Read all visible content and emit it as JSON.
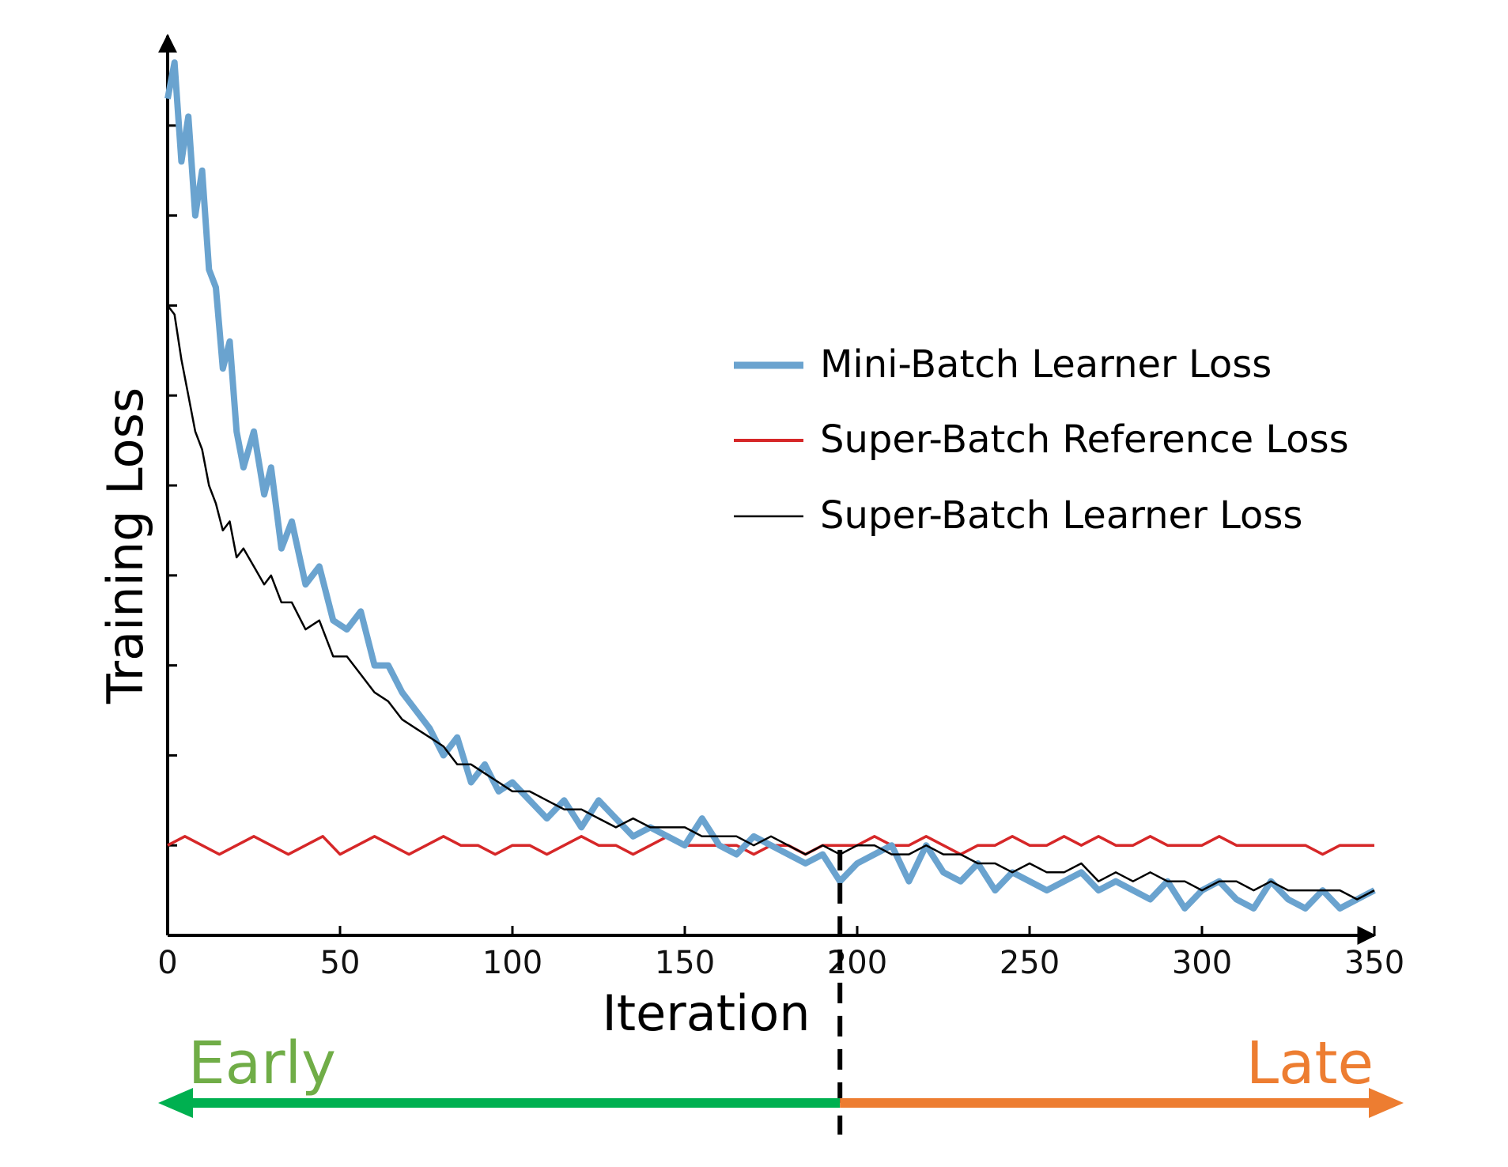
{
  "chart_data": {
    "type": "line",
    "xlabel": "Iteration",
    "ylabel": "Training Loss",
    "xlim": [
      0,
      350
    ],
    "ylim": [
      0,
      1.0
    ],
    "x_ticks": [
      0,
      50,
      100,
      150,
      200,
      250,
      300,
      350
    ],
    "x_tick_labels": [
      "0",
      "50",
      "100",
      "150",
      "200",
      "250",
      "300",
      "350"
    ],
    "y_ticks": [
      0.1,
      0.2,
      0.3,
      0.4,
      0.5,
      0.6,
      0.7,
      0.8,
      0.9
    ],
    "y_tick_labels_visible": false,
    "grid": false,
    "legend_position": "right, upper-middle",
    "series": [
      {
        "name": "Mini-Batch Learner Loss",
        "color": "#6aa3cf",
        "x": [
          0,
          2,
          4,
          6,
          8,
          10,
          12,
          14,
          16,
          18,
          20,
          22,
          25,
          28,
          30,
          33,
          36,
          40,
          44,
          48,
          52,
          56,
          60,
          64,
          68,
          72,
          76,
          80,
          84,
          88,
          92,
          96,
          100,
          105,
          110,
          115,
          120,
          125,
          130,
          135,
          140,
          145,
          150,
          155,
          160,
          165,
          170,
          175,
          180,
          185,
          190,
          195,
          200,
          205,
          210,
          215,
          220,
          225,
          230,
          235,
          240,
          245,
          250,
          255,
          260,
          265,
          270,
          275,
          280,
          285,
          290,
          295,
          300,
          305,
          310,
          315,
          320,
          325,
          330,
          335,
          340,
          345,
          350
        ],
        "values": [
          0.93,
          0.97,
          0.86,
          0.91,
          0.8,
          0.85,
          0.74,
          0.72,
          0.63,
          0.66,
          0.56,
          0.52,
          0.56,
          0.49,
          0.52,
          0.43,
          0.46,
          0.39,
          0.41,
          0.35,
          0.34,
          0.36,
          0.3,
          0.3,
          0.27,
          0.25,
          0.23,
          0.2,
          0.22,
          0.17,
          0.19,
          0.16,
          0.17,
          0.15,
          0.13,
          0.15,
          0.12,
          0.15,
          0.13,
          0.11,
          0.12,
          0.11,
          0.1,
          0.13,
          0.1,
          0.09,
          0.11,
          0.1,
          0.09,
          0.08,
          0.09,
          0.06,
          0.08,
          0.09,
          0.1,
          0.06,
          0.1,
          0.07,
          0.06,
          0.08,
          0.05,
          0.07,
          0.06,
          0.05,
          0.06,
          0.07,
          0.05,
          0.06,
          0.05,
          0.04,
          0.06,
          0.03,
          0.05,
          0.06,
          0.04,
          0.03,
          0.06,
          0.04,
          0.03,
          0.05,
          0.03,
          0.04,
          0.05
        ]
      },
      {
        "name": "Super-Batch Reference Loss",
        "color": "#d62728",
        "x": [
          0,
          5,
          10,
          15,
          20,
          25,
          30,
          35,
          40,
          45,
          50,
          55,
          60,
          65,
          70,
          75,
          80,
          85,
          90,
          95,
          100,
          105,
          110,
          115,
          120,
          125,
          130,
          135,
          140,
          145,
          150,
          155,
          160,
          165,
          170,
          175,
          180,
          185,
          190,
          195,
          200,
          205,
          210,
          215,
          220,
          225,
          230,
          235,
          240,
          245,
          250,
          255,
          260,
          265,
          270,
          275,
          280,
          285,
          290,
          295,
          300,
          305,
          310,
          315,
          320,
          325,
          330,
          335,
          340,
          345,
          350
        ],
        "values": [
          0.1,
          0.11,
          0.1,
          0.09,
          0.1,
          0.11,
          0.1,
          0.09,
          0.1,
          0.11,
          0.09,
          0.1,
          0.11,
          0.1,
          0.09,
          0.1,
          0.11,
          0.1,
          0.1,
          0.09,
          0.1,
          0.1,
          0.09,
          0.1,
          0.11,
          0.1,
          0.1,
          0.09,
          0.1,
          0.11,
          0.1,
          0.1,
          0.1,
          0.1,
          0.09,
          0.1,
          0.1,
          0.09,
          0.1,
          0.1,
          0.1,
          0.11,
          0.1,
          0.1,
          0.11,
          0.1,
          0.09,
          0.1,
          0.1,
          0.11,
          0.1,
          0.1,
          0.11,
          0.1,
          0.11,
          0.1,
          0.1,
          0.11,
          0.1,
          0.1,
          0.1,
          0.11,
          0.1,
          0.1,
          0.1,
          0.1,
          0.1,
          0.09,
          0.1,
          0.1,
          0.1
        ]
      },
      {
        "name": "Super-Batch Learner Loss",
        "color": "#000000",
        "x": [
          0,
          2,
          4,
          6,
          8,
          10,
          12,
          14,
          16,
          18,
          20,
          22,
          25,
          28,
          30,
          33,
          36,
          40,
          44,
          48,
          52,
          56,
          60,
          64,
          68,
          72,
          76,
          80,
          84,
          88,
          92,
          96,
          100,
          105,
          110,
          115,
          120,
          125,
          130,
          135,
          140,
          145,
          150,
          155,
          160,
          165,
          170,
          175,
          180,
          185,
          190,
          195,
          200,
          205,
          210,
          215,
          220,
          225,
          230,
          235,
          240,
          245,
          250,
          255,
          260,
          265,
          270,
          275,
          280,
          285,
          290,
          295,
          300,
          305,
          310,
          315,
          320,
          325,
          330,
          335,
          340,
          345,
          350
        ],
        "values": [
          0.7,
          0.69,
          0.64,
          0.6,
          0.56,
          0.54,
          0.5,
          0.48,
          0.45,
          0.46,
          0.42,
          0.43,
          0.41,
          0.39,
          0.4,
          0.37,
          0.37,
          0.34,
          0.35,
          0.31,
          0.31,
          0.29,
          0.27,
          0.26,
          0.24,
          0.23,
          0.22,
          0.21,
          0.19,
          0.19,
          0.18,
          0.17,
          0.16,
          0.16,
          0.15,
          0.14,
          0.14,
          0.13,
          0.12,
          0.13,
          0.12,
          0.12,
          0.12,
          0.11,
          0.11,
          0.11,
          0.1,
          0.11,
          0.1,
          0.09,
          0.1,
          0.09,
          0.1,
          0.1,
          0.09,
          0.09,
          0.1,
          0.09,
          0.09,
          0.08,
          0.08,
          0.07,
          0.08,
          0.07,
          0.07,
          0.08,
          0.06,
          0.07,
          0.06,
          0.07,
          0.06,
          0.06,
          0.05,
          0.06,
          0.06,
          0.05,
          0.06,
          0.05,
          0.05,
          0.05,
          0.05,
          0.04,
          0.05
        ]
      }
    ],
    "annotations": {
      "divider_iteration": 195,
      "early_label": "Early",
      "early_color": "#70ad47",
      "early_arrow_color": "#00b050",
      "late_label": "Late",
      "late_color": "#ed7d31",
      "late_arrow_color": "#ed7d31"
    }
  }
}
